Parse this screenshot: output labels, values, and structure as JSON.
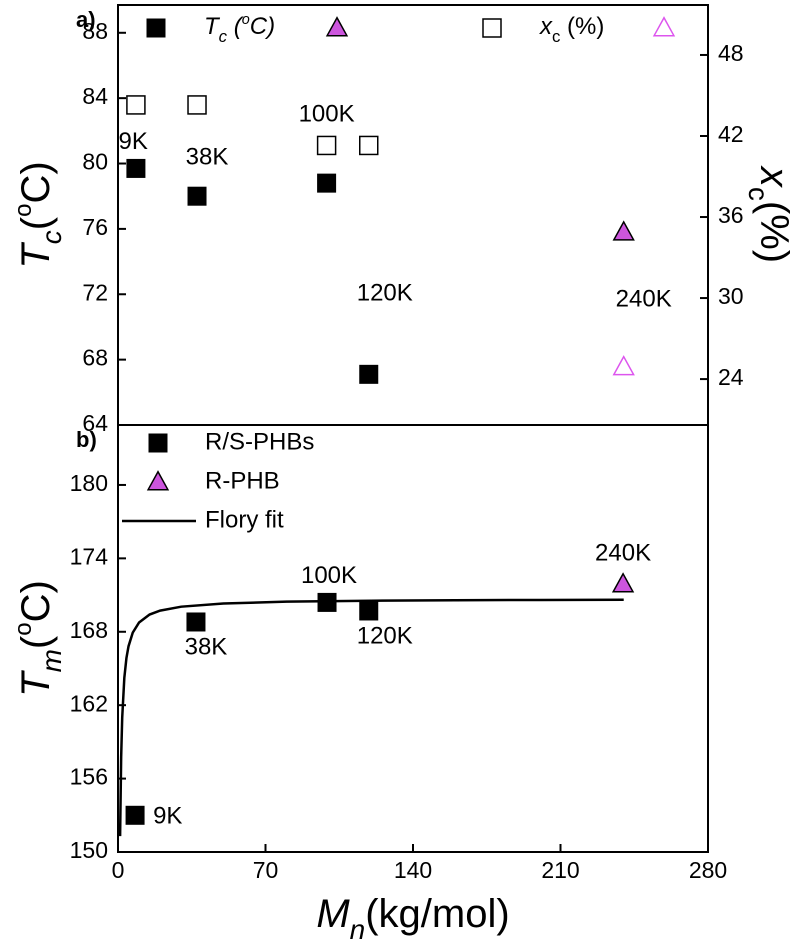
{
  "chart_data": [
    {
      "type": "scatter",
      "panel_label": "a)",
      "ylabel": [
        [
          "T",
          "i"
        ],
        [
          "c",
          "isub"
        ],
        [
          "(",
          "n"
        ],
        [
          "o",
          "sup"
        ],
        [
          "C)",
          "n"
        ]
      ],
      "y2label": [
        [
          "x",
          "i"
        ],
        [
          "c",
          "sub"
        ],
        [
          "(%)",
          "n"
        ]
      ],
      "xlim": [
        0,
        280
      ],
      "ylim": [
        64,
        89.7
      ],
      "yticks": [
        64,
        68,
        72,
        76,
        80,
        84,
        88
      ],
      "y2lim": [
        20.6,
        51.7
      ],
      "y2ticks": [
        24,
        30,
        36,
        42,
        48
      ],
      "legend": [
        {
          "label": [
            [
              "T",
              "i"
            ],
            [
              "c",
              "isub"
            ],
            [
              " (",
              "i"
            ],
            [
              "o",
              "isup"
            ],
            [
              "C)",
              "i"
            ]
          ],
          "markers": [
            0,
            1
          ]
        },
        {
          "label": [
            [
              "x",
              "i"
            ],
            [
              "c",
              "sub"
            ],
            [
              " (%)",
              "n"
            ]
          ],
          "markers": [
            2,
            3
          ]
        }
      ],
      "series": [
        {
          "marker": "square",
          "color": "#000000",
          "x": [
            8.5,
            37.5,
            99,
            119
          ],
          "values": [
            79.7,
            78.0,
            78.8,
            67.1
          ],
          "labels": [
            "9K",
            "38K",
            "100K",
            "120K"
          ]
        },
        {
          "marker": "triangle",
          "color": "#cc55dd",
          "x": [
            240
          ],
          "values": [
            75.8
          ],
          "labels": [
            "240K"
          ]
        },
        {
          "marker": "open-square",
          "color": "#000000",
          "axis": "y2",
          "x": [
            8.5,
            37.5,
            99,
            119
          ],
          "values": [
            44.3,
            44.3,
            41.3,
            41.3
          ]
        },
        {
          "marker": "open-triangle",
          "color": "#dd55ee",
          "axis": "y2",
          "x": [
            240
          ],
          "values": [
            24.9
          ]
        }
      ]
    },
    {
      "type": "scatter",
      "panel_label": "b)",
      "ylabel": [
        [
          "T",
          "i"
        ],
        [
          "m",
          "isub"
        ],
        [
          "(",
          "n"
        ],
        [
          "o",
          "sup"
        ],
        [
          "C)",
          "n"
        ]
      ],
      "xlabel": [
        [
          "M",
          "i"
        ],
        [
          "n",
          "isub"
        ],
        [
          "(kg/mol)",
          "n"
        ]
      ],
      "xlim": [
        0,
        280
      ],
      "xticks": [
        0,
        70,
        140,
        210,
        280
      ],
      "ylim": [
        150,
        184.9
      ],
      "yticks": [
        150,
        156,
        162,
        168,
        174,
        180
      ],
      "series": [
        {
          "name": "R/S-PHBs",
          "marker": "square",
          "color": "#000000",
          "x": [
            8.1,
            37,
            99.2,
            119
          ],
          "values": [
            153.0,
            168.8,
            170.4,
            169.7
          ],
          "labels": [
            "9K",
            "38K",
            "100K",
            "120K"
          ]
        },
        {
          "name": "R-PHB",
          "marker": "triangle",
          "color": "#cc55dd",
          "x": [
            239.7
          ],
          "values": [
            171.9
          ],
          "labels": [
            "240K"
          ]
        },
        {
          "name": "Flory fit",
          "marker": "line",
          "color": "#000000",
          "x": [
            1,
            1.5,
            2,
            3,
            4,
            5,
            7,
            10,
            15,
            20,
            30,
            50,
            80,
            120,
            160,
            200,
            240
          ],
          "values": [
            151.3,
            157.77,
            161.0,
            164.23,
            165.85,
            166.82,
            167.93,
            168.76,
            169.41,
            169.73,
            170.05,
            170.31,
            170.46,
            170.54,
            170.58,
            170.6,
            170.62
          ]
        }
      ]
    }
  ]
}
